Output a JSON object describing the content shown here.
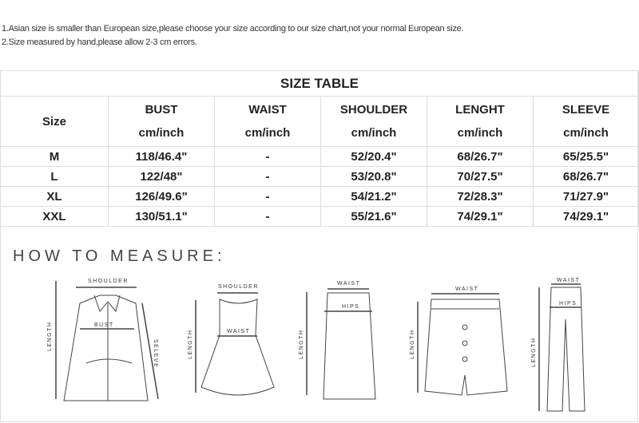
{
  "notes": [
    "1.Asian size is smaller than European size,please choose your size according to our size chart,not your normal European size.",
    "2.Size measured by hand,please allow 2-3 cm errors."
  ],
  "table": {
    "title": "SIZE TABLE",
    "headers": [
      {
        "name": "Size",
        "unit": ""
      },
      {
        "name": "BUST",
        "unit": "cm/inch"
      },
      {
        "name": "WAIST",
        "unit": "cm/inch"
      },
      {
        "name": "SHOULDER",
        "unit": "cm/inch"
      },
      {
        "name": "LENGHT",
        "unit": "cm/inch"
      },
      {
        "name": "SLEEVE",
        "unit": "cm/inch"
      }
    ],
    "rows": [
      [
        "M",
        "118/46.4\"",
        "-",
        "52/20.4\"",
        "68/26.7\"",
        "65/25.5\""
      ],
      [
        "L",
        "122/48\"",
        "-",
        "53/20.8\"",
        "70/27.5\"",
        "68/26.7\""
      ],
      [
        "XL",
        "126/49.6\"",
        "-",
        "54/21.2\"",
        "72/28.3\"",
        "71/27.9\""
      ],
      [
        "XXL",
        "130/51.1\"",
        "-",
        "55/21.6\"",
        "74/29.1\"",
        "74/29.1\""
      ]
    ]
  },
  "how_to_measure": {
    "title": "HOW TO MEASURE:",
    "labels": {
      "shoulder": "SHOULDER",
      "bust": "BUST",
      "length": "LENGTH",
      "sleeve": "SELEVE",
      "waist": "WAIST",
      "hips": "HIPS"
    }
  }
}
